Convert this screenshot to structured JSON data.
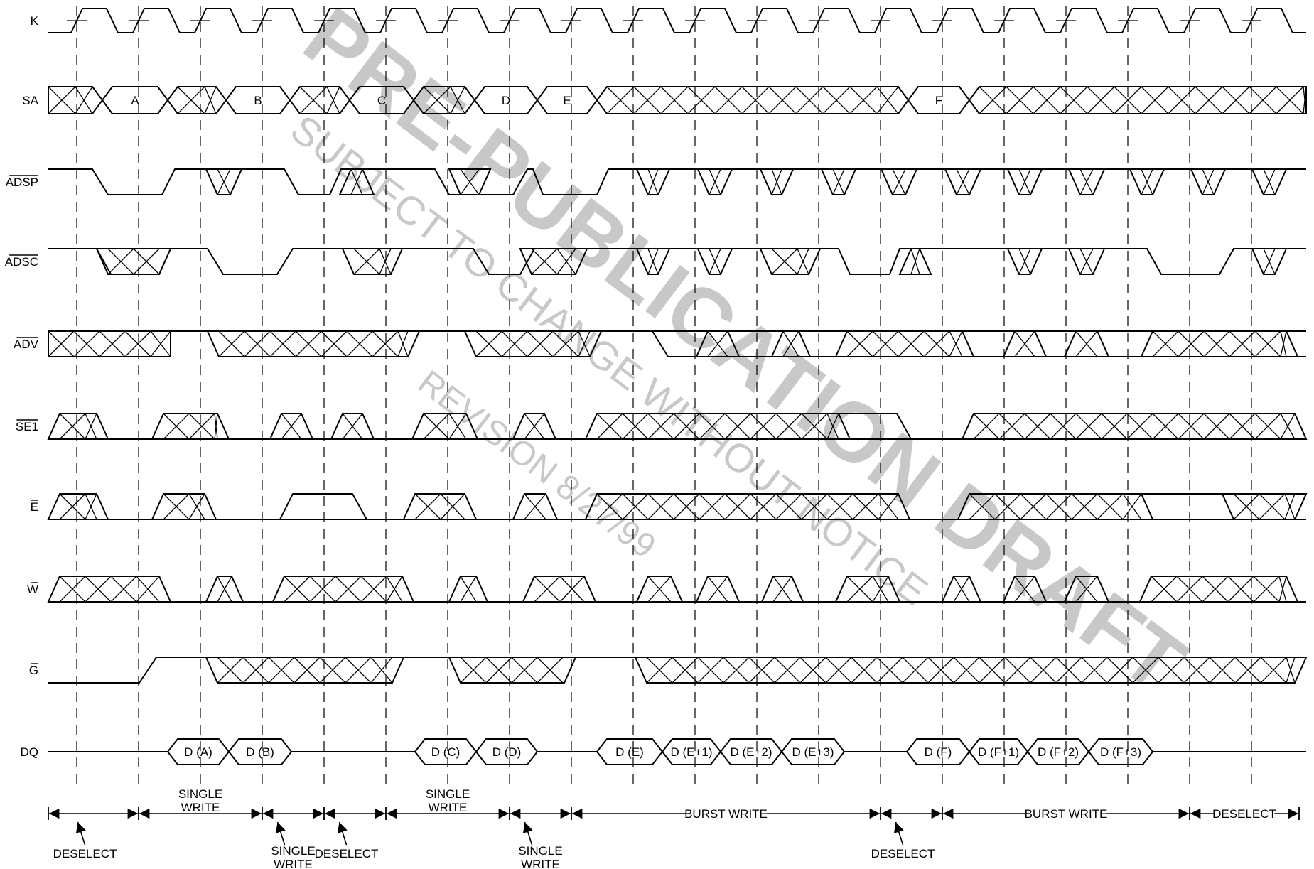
{
  "signals": [
    {
      "id": "K",
      "label": "K",
      "overbar": false
    },
    {
      "id": "SA",
      "label": "SA",
      "overbar": false
    },
    {
      "id": "ADSP",
      "label": "ADSP",
      "overbar": true
    },
    {
      "id": "ADSC",
      "label": "ADSC",
      "overbar": true
    },
    {
      "id": "ADV",
      "label": "ADV",
      "overbar": true
    },
    {
      "id": "SE1",
      "label": "SE1",
      "overbar": true
    },
    {
      "id": "E",
      "label": "E",
      "overbar": true
    },
    {
      "id": "W",
      "label": "W",
      "overbar": true
    },
    {
      "id": "G",
      "label": "G",
      "overbar": true
    },
    {
      "id": "DQ",
      "label": "DQ",
      "overbar": false
    }
  ],
  "address_labels": [
    "A",
    "B",
    "C",
    "D",
    "E",
    "F"
  ],
  "dq_labels": [
    "D (A)",
    "D (B)",
    "D (C)",
    "D (D)",
    "D (E)",
    "D (E+1)",
    "D (E+2)",
    "D (E+3)",
    "D (F)",
    "D (F+1)",
    "D (F+2)",
    "D (F+3)"
  ],
  "phases": [
    {
      "id": "deselect-1",
      "label": [
        "DESELECT"
      ]
    },
    {
      "id": "single-write-1",
      "label": [
        "SINGLE",
        "WRITE"
      ]
    },
    {
      "id": "single-write-2",
      "label": [
        "SINGLE",
        "WRITE"
      ]
    },
    {
      "id": "deselect-2",
      "label": [
        "DESELECT"
      ]
    },
    {
      "id": "single-write-3",
      "label": [
        "SINGLE",
        "WRITE"
      ]
    },
    {
      "id": "single-write-4",
      "label": [
        "SINGLE",
        "WRITE"
      ]
    },
    {
      "id": "burst-write-1",
      "label": [
        "BURST WRITE"
      ]
    },
    {
      "id": "deselect-3",
      "label": [
        "DESELECT"
      ]
    },
    {
      "id": "burst-write-2",
      "label": [
        "BURST WRITE"
      ]
    },
    {
      "id": "deselect-4",
      "label": [
        "DESELECT"
      ]
    }
  ],
  "watermark": {
    "main": "PRE-PUBLICATION DRAFT",
    "sub": "SUBJECT TO CHANGE WITHOUT NOTICE",
    "revision": "REVISION 8/27/99"
  },
  "colors": {
    "ink": "#000000",
    "watermark": "#c8c8c8",
    "background": "#ffffff"
  }
}
